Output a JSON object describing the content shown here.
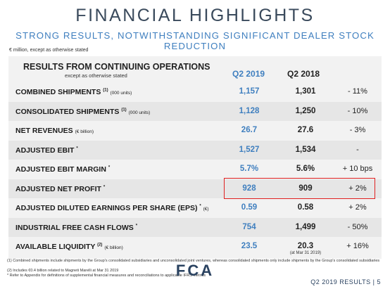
{
  "header": {
    "title": "FINANCIAL HIGHLIGHTS",
    "subtitle": "STRONG RESULTS, NOTWITHSTANDING SIGNIFICANT DEALER STOCK REDUCTION",
    "units_note": "€ million, except as otherwise stated"
  },
  "table": {
    "section_title": "RESULTS FROM CONTINUING OPERATIONS",
    "section_sub": "except as otherwise stated",
    "col_q2_2019": "Q2 2019",
    "col_q2_2018": "Q2 2018",
    "rows": [
      {
        "label": "COMBINED SHIPMENTS",
        "sup": "(1)",
        "unit": "(000 units)",
        "q2_2019": "1,157",
        "q2_2018": "1,301",
        "change": "- 11%"
      },
      {
        "label": "CONSOLIDATED SHIPMENTS",
        "sup": "(1)",
        "unit": "(000 units)",
        "q2_2019": "1,128",
        "q2_2018": "1,250",
        "change": "- 10%"
      },
      {
        "label": "NET REVENUES",
        "sup": "",
        "unit": "(€ billion)",
        "q2_2019": "26.7",
        "q2_2018": "27.6",
        "change": "- 3%"
      },
      {
        "label": "ADJUSTED EBIT",
        "sup": "*",
        "unit": "",
        "q2_2019": "1,527",
        "q2_2018": "1,534",
        "change": "-"
      },
      {
        "label": "ADJUSTED EBIT MARGIN",
        "sup": "*",
        "unit": "",
        "q2_2019": "5.7%",
        "q2_2018": "5.6%",
        "change": "+ 10 bps"
      },
      {
        "label": "ADJUSTED NET PROFIT",
        "sup": "*",
        "unit": "",
        "q2_2019": "928",
        "q2_2018": "909",
        "change": "+ 2%"
      },
      {
        "label": "ADJUSTED DILUTED EARNINGS PER SHARE (EPS)",
        "sup": "*",
        "unit": "(€)",
        "q2_2019": "0.59",
        "q2_2018": "0.58",
        "change": "+ 2%"
      },
      {
        "label": "INDUSTRIAL FREE CASH FLOWS",
        "sup": "*",
        "unit": "",
        "q2_2019": "754",
        "q2_2018": "1,499",
        "change": "- 50%"
      },
      {
        "label": "AVAILABLE LIQUIDITY",
        "sup": "(2)",
        "unit": "(€ billion)",
        "q2_2019": "23.5",
        "q2_2018": "20.3",
        "q2_2018_note": "(at Mar 31 2019)",
        "change": "+ 16%"
      }
    ]
  },
  "footnotes": [
    "(1)  Combined shipments include shipments by the Group's consolidated subsidiaries and unconsolidated joint ventures, whereas consolidated shipments only include shipments by the Group's consolidated subsidiaries",
    "(2)  Includes €0.4 billion related to Magneti Marelli at Mar 31 2019",
    "* Refer to Appendix for definitions of supplemental financial measures and reconciliations to applicable IFRS metrics"
  ],
  "footer": {
    "logo": "FCA",
    "page_label": "Q2 2019 RESULTS  |  5"
  },
  "colors": {
    "accent": "#3f7fbf",
    "highlight_border": "#e02020",
    "title": "#3a4a5c"
  }
}
